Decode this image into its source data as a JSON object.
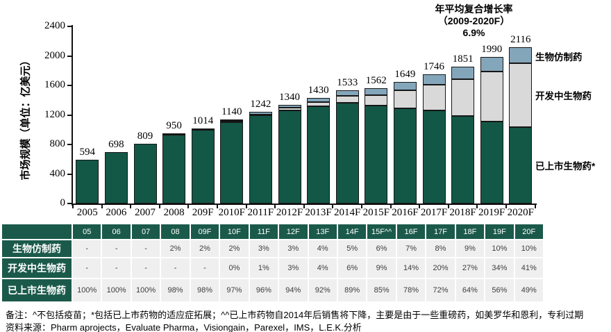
{
  "chart_data": {
    "type": "bar",
    "stacked": true,
    "title": "年平均复合增长率（2009-2020F）6.9%",
    "annotation_lines": [
      "年平均复合增长率",
      "（2009-2020F）",
      "6.9%"
    ],
    "ylabel": "市场规模（单位：亿美元）",
    "ylim": [
      0,
      2400
    ],
    "ytick_step": 400,
    "grid": false,
    "legend_position": "right",
    "categories": [
      "2005",
      "2006",
      "2007",
      "2008",
      "209F",
      "2010F",
      "2011F",
      "2012F",
      "2013F",
      "2014F",
      "2015F",
      "2016F",
      "2017F",
      "2018F",
      "2019F",
      "2020F"
    ],
    "totals": [
      594,
      698,
      809,
      950,
      1014,
      1140,
      1242,
      1340,
      1430,
      1533,
      1562,
      1649,
      1746,
      1851,
      1990,
      2116
    ],
    "series": [
      {
        "name": "已上市生物药*",
        "role": "marketed",
        "color": "#135847",
        "pct": [
          100,
          100,
          100,
          98,
          98,
          97,
          96,
          94,
          92,
          89,
          85,
          78,
          72,
          64,
          56,
          49
        ]
      },
      {
        "name": "开发中生物药",
        "role": "pipeline",
        "color": "#d9d9d9",
        "pct": [
          0,
          0,
          0,
          0,
          0,
          0,
          1,
          3,
          4,
          6,
          9,
          14,
          20,
          27,
          34,
          41
        ]
      },
      {
        "name": "生物仿制药",
        "role": "biosimilar",
        "color": "#84a6bb",
        "pct": [
          0,
          0,
          0,
          2,
          2,
          2,
          3,
          3,
          4,
          5,
          6,
          7,
          8,
          9,
          10,
          10
        ]
      }
    ]
  },
  "table": {
    "col_headers": [
      "05",
      "06",
      "07",
      "08",
      "09F",
      "10F",
      "11F",
      "12F",
      "13F",
      "14F",
      "15F^^",
      "16F",
      "17F",
      "18F",
      "19F",
      "20F"
    ],
    "rows": [
      {
        "label": "生物仿制药",
        "values": [
          "-",
          "-",
          "-",
          "2%",
          "2%",
          "2%",
          "3%",
          "3%",
          "4%",
          "5%",
          "6%",
          "7%",
          "8%",
          "9%",
          "10%",
          "10%"
        ]
      },
      {
        "label": "开发中生物药",
        "values": [
          "-",
          "-",
          "-",
          "-",
          "-",
          "0%",
          "1%",
          "3%",
          "4%",
          "6%",
          "9%",
          "14%",
          "20%",
          "27%",
          "34%",
          "41%"
        ]
      },
      {
        "label": "已上市生物药",
        "values": [
          "100%",
          "100%",
          "100%",
          "98%",
          "98%",
          "97%",
          "96%",
          "94%",
          "92%",
          "89%",
          "85%",
          "78%",
          "72%",
          "64%",
          "56%",
          "49%"
        ]
      }
    ]
  },
  "notes": {
    "remark": "备注：^不包括疫苗；*包括已上市药物的适应症拓展；^^已上市药物自2014年后销售将下降，主要是由于一些重磅药，如美罗华和恩利，专利过期",
    "source": "资料来源：Pharm aprojects，Evaluate Pharma，Visiongain，Parexel，IMS，L.E.K.分析"
  }
}
